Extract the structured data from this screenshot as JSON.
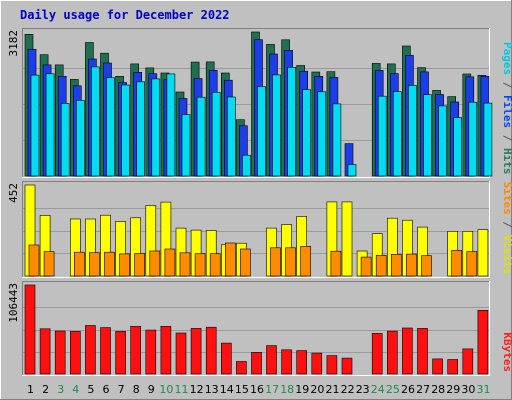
{
  "chart_data": {
    "type": "bar",
    "title": "Daily usage for December 2022",
    "categories": [
      "1",
      "2",
      "3",
      "4",
      "5",
      "6",
      "7",
      "8",
      "9",
      "10",
      "11",
      "12",
      "13",
      "14",
      "15",
      "16",
      "17",
      "18",
      "19",
      "20",
      "21",
      "22",
      "23",
      "24",
      "25",
      "26",
      "27",
      "28",
      "29",
      "30",
      "31"
    ],
    "weekend_days": [
      "3",
      "4",
      "10",
      "11",
      "17",
      "18",
      "24",
      "25",
      "31"
    ],
    "panels": [
      {
        "ymax_label": "3182",
        "ymax": 3182,
        "legend": [
          {
            "text": "Pages",
            "color": "#00c8e0"
          },
          {
            "text": " / ",
            "color": "#555555"
          },
          {
            "text": "Files",
            "color": "#0044ff"
          },
          {
            "text": " / ",
            "color": "#555555"
          },
          {
            "text": "Hits",
            "color": "#2b7a5a"
          }
        ],
        "series": [
          {
            "name": "Hits",
            "color": "#1e7050",
            "values": [
              3132,
              2681,
              2456,
              2134,
              2950,
              2713,
              2204,
              2477,
              2389,
              2277,
              1856,
              2516,
              2521,
              2277,
              1244,
              3182,
              2908,
              3010,
              2441,
              2299,
              2304,
              0,
              0,
              2489,
              2477,
              2873,
              2395,
              1892,
              1755,
              2254,
              2226
            ]
          },
          {
            "name": "Files",
            "color": "#1c3ee8",
            "values": [
              2800,
              2456,
              2202,
              1993,
              2585,
              2496,
              2066,
              2291,
              2261,
              2125,
              1712,
              2154,
              2335,
              2118,
              1111,
              3012,
              2695,
              2778,
              2316,
              2204,
              2178,
              715,
              0,
              2334,
              2266,
              2666,
              2301,
              1802,
              1636,
              2192,
              2204
            ]
          },
          {
            "name": "Pages",
            "color": "#00dcf0",
            "values": [
              2230,
              2258,
              1604,
              1673,
              2410,
              2175,
              2010,
              2082,
              2145,
              2257,
              1356,
              1741,
              1849,
              1746,
              459,
              1977,
              2233,
              2403,
              1906,
              1860,
              1593,
              254,
              0,
              1763,
              1866,
              2003,
              1797,
              1549,
              1290,
              1630,
              1610
            ]
          }
        ]
      },
      {
        "ymax_label": "452",
        "ymax": 452,
        "legend": [
          {
            "text": "Sites",
            "color": "#ff8800"
          },
          {
            "text": " / ",
            "color": "#555555"
          },
          {
            "text": "Visits",
            "color": "#e0e000"
          }
        ],
        "series": [
          {
            "name": "Visits",
            "color": "#ffff00",
            "values": [
              452,
              301,
              0,
              283,
              283,
              302,
              271,
              289,
              350,
              367,
              238,
              228,
              226,
              155,
              163,
              0,
              238,
              256,
              296,
              0,
              368,
              368,
              124,
              210,
              287,
              277,
              243,
              0,
              222,
              222,
              230
            ]
          },
          {
            "name": "Sites",
            "color": "#ff8c00",
            "values": [
              154,
              121,
              0,
              118,
              116,
              118,
              110,
              112,
              124,
              134,
              115,
              111,
              111,
              164,
              134,
              0,
              140,
              140,
              147,
              0,
              123,
              0,
              94,
              103,
              108,
              109,
              101,
              0,
              127,
              121,
              0
            ]
          }
        ]
      },
      {
        "ymax_label": "106443",
        "ymax": 106443,
        "legend": [
          {
            "text": "KBytes",
            "color": "#ff2020"
          }
        ],
        "series": [
          {
            "name": "KBytes",
            "color": "#ff1010",
            "values": [
              106443,
              54000,
              51400,
              51000,
              58000,
              55500,
              51000,
              57000,
              52500,
              57000,
              49000,
              54500,
              56000,
              37000,
              15000,
              26000,
              34000,
              29000,
              28000,
              25000,
              22000,
              19000,
              0,
              48500,
              51300,
              55000,
              54500,
              18000,
              17300,
              30000,
              76200
            ]
          }
        ]
      }
    ]
  }
}
